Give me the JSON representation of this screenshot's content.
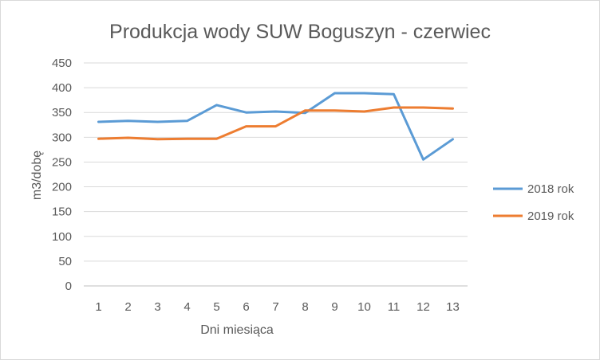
{
  "chart_data": {
    "type": "line",
    "title": "Produkcja wody SUW Boguszyn - czerwiec",
    "xlabel": "Dni miesiąca",
    "ylabel": "m3/dobę",
    "x": [
      "1",
      "2",
      "3",
      "4",
      "5",
      "6",
      "7",
      "8",
      "9",
      "10",
      "11",
      "12",
      "13"
    ],
    "ylim": [
      0,
      450
    ],
    "yticks": [
      0,
      50,
      100,
      150,
      200,
      250,
      300,
      350,
      400,
      450
    ],
    "grid": true,
    "legend_position": "right",
    "series": [
      {
        "name": "2018 rok",
        "color": "#5b9bd5",
        "values": [
          331,
          333,
          331,
          333,
          365,
          350,
          352,
          349,
          389,
          389,
          387,
          255,
          296
        ]
      },
      {
        "name": "2019 rok",
        "color": "#ed7d31",
        "values": [
          297,
          299,
          296,
          297,
          297,
          322,
          322,
          354,
          354,
          352,
          360,
          360,
          358
        ]
      }
    ]
  }
}
